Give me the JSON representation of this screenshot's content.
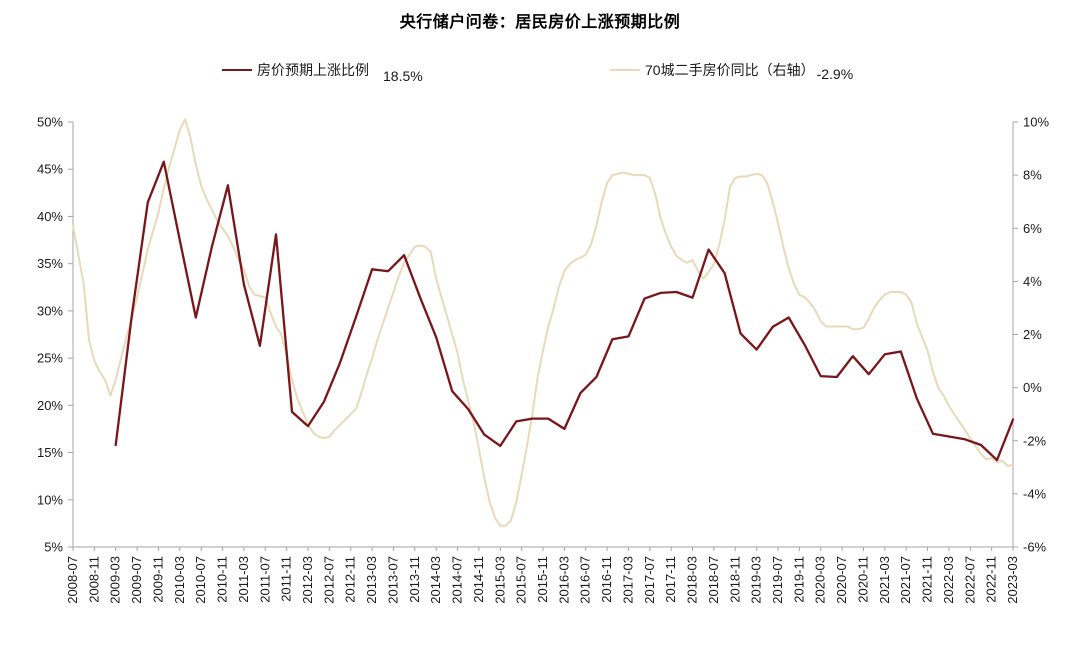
{
  "chart_data": {
    "type": "line",
    "title": "央行储户问卷：居民房价上涨预期比例",
    "x_range_months": 177,
    "x_tick_labels": [
      "2008-07",
      "2008-11",
      "2009-03",
      "2009-07",
      "2009-11",
      "2010-03",
      "2010-07",
      "2010-11",
      "2011-03",
      "2011-07",
      "2011-11",
      "2012-03",
      "2012-07",
      "2012-11",
      "2013-03",
      "2013-07",
      "2013-11",
      "2014-03",
      "2014-07",
      "2014-11",
      "2015-03",
      "2015-07",
      "2015-11",
      "2016-03",
      "2016-07",
      "2016-11",
      "2017-03",
      "2017-07",
      "2017-11",
      "2018-03",
      "2018-07",
      "2018-11",
      "2019-03",
      "2019-07",
      "2019-11",
      "2020-03",
      "2020-07",
      "2020-11",
      "2021-03",
      "2021-07",
      "2021-11",
      "2022-03",
      "2022-07",
      "2022-11",
      "2023-03"
    ],
    "y_left": {
      "min": 5,
      "max": 50,
      "step": 5,
      "labels": [
        "50%",
        "45%",
        "40%",
        "35%",
        "30%",
        "25%",
        "20%",
        "15%",
        "10%",
        "5%"
      ]
    },
    "y_right": {
      "min": -6,
      "max": 10,
      "step": 2,
      "labels": [
        "10%",
        "8%",
        "6%",
        "4%",
        "2%",
        "0%",
        "-2%",
        "-4%",
        "-6%"
      ]
    },
    "series": [
      {
        "name": "70城二手房价同比（右轴）",
        "latest_label": "-2.9%",
        "axis": "right",
        "color": "#E8D9B8",
        "line_width": 2,
        "start_month_index": 0,
        "interval_months": 1,
        "values": [
          6.1,
          5.0,
          3.9,
          1.8,
          1.0,
          0.6,
          0.3,
          -0.3,
          0.3,
          1.1,
          1.9,
          2.6,
          3.4,
          4.3,
          5.2,
          5.9,
          6.6,
          7.5,
          8.3,
          9.0,
          9.7,
          10.1,
          9.4,
          8.4,
          7.6,
          7.1,
          6.7,
          6.3,
          6.0,
          5.7,
          5.3,
          4.8,
          4.45,
          3.8,
          3.5,
          3.45,
          3.4,
          2.8,
          2.3,
          2.0,
          1.2,
          0.3,
          -0.4,
          -0.9,
          -1.4,
          -1.7,
          -1.85,
          -1.9,
          -1.85,
          -1.6,
          -1.4,
          -1.2,
          -1.0,
          -0.8,
          -0.2,
          0.5,
          1.1,
          1.8,
          2.4,
          3.0,
          3.6,
          4.2,
          4.7,
          5.0,
          5.3,
          5.35,
          5.3,
          5.1,
          4.1,
          3.4,
          2.7,
          2.0,
          1.3,
          0.3,
          -0.5,
          -1.3,
          -2.3,
          -3.4,
          -4.3,
          -4.9,
          -5.2,
          -5.2,
          -5.0,
          -4.3,
          -3.3,
          -2.2,
          -1.0,
          0.4,
          1.4,
          2.3,
          3.0,
          3.8,
          4.4,
          4.65,
          4.8,
          4.9,
          5.0,
          5.4,
          6.1,
          7.0,
          7.7,
          8.0,
          8.05,
          8.1,
          8.05,
          8.0,
          8.0,
          8.0,
          7.9,
          7.3,
          6.4,
          5.8,
          5.3,
          4.95,
          4.8,
          4.7,
          4.8,
          4.4,
          4.1,
          4.35,
          4.65,
          5.4,
          6.3,
          7.55,
          7.9,
          7.95,
          7.95,
          8.0,
          8.05,
          8.0,
          7.7,
          7.0,
          6.2,
          5.3,
          4.5,
          3.9,
          3.5,
          3.4,
          3.2,
          2.9,
          2.5,
          2.3,
          2.3,
          2.3,
          2.3,
          2.3,
          2.2,
          2.2,
          2.25,
          2.6,
          3.0,
          3.3,
          3.5,
          3.6,
          3.6,
          3.6,
          3.5,
          3.2,
          2.4,
          1.9,
          1.4,
          0.6,
          0.0,
          -0.3,
          -0.7,
          -1.0,
          -1.3,
          -1.6,
          -1.9,
          -2.2,
          -2.5,
          -2.7,
          -2.65,
          -2.8,
          -2.75,
          -2.95,
          -2.9
        ]
      },
      {
        "name": "房价预期上涨比例",
        "latest_label": "18.5%",
        "axis": "left",
        "color": "#7A151A",
        "line_width": 2.3,
        "start_month_index": 8,
        "interval_months": 3,
        "values": [
          15.8,
          29.5,
          41.5,
          45.8,
          37.5,
          29.3,
          36.8,
          43.3,
          32.8,
          26.3,
          38.1,
          19.3,
          17.8,
          20.4,
          24.5,
          29.4,
          34.4,
          34.2,
          35.9,
          31.4,
          27.2,
          21.5,
          19.6,
          16.9,
          15.7,
          18.3,
          18.6,
          18.6,
          17.5,
          21.3,
          23.0,
          27.0,
          27.3,
          31.3,
          31.9,
          32.0,
          31.4,
          36.5,
          34.0,
          27.6,
          25.9,
          28.3,
          29.3,
          26.4,
          23.1,
          23.0,
          25.2,
          23.3,
          25.4,
          25.7,
          20.7,
          17.0,
          16.7,
          16.4,
          15.8,
          14.2,
          18.5
        ]
      }
    ],
    "legend_position": "top",
    "grid": false
  },
  "legend": {
    "items": [
      {
        "label": "房价预期上涨比例",
        "value": "18.5%"
      },
      {
        "label": "70城二手房价同比（右轴）",
        "value": "-2.9%"
      }
    ]
  }
}
